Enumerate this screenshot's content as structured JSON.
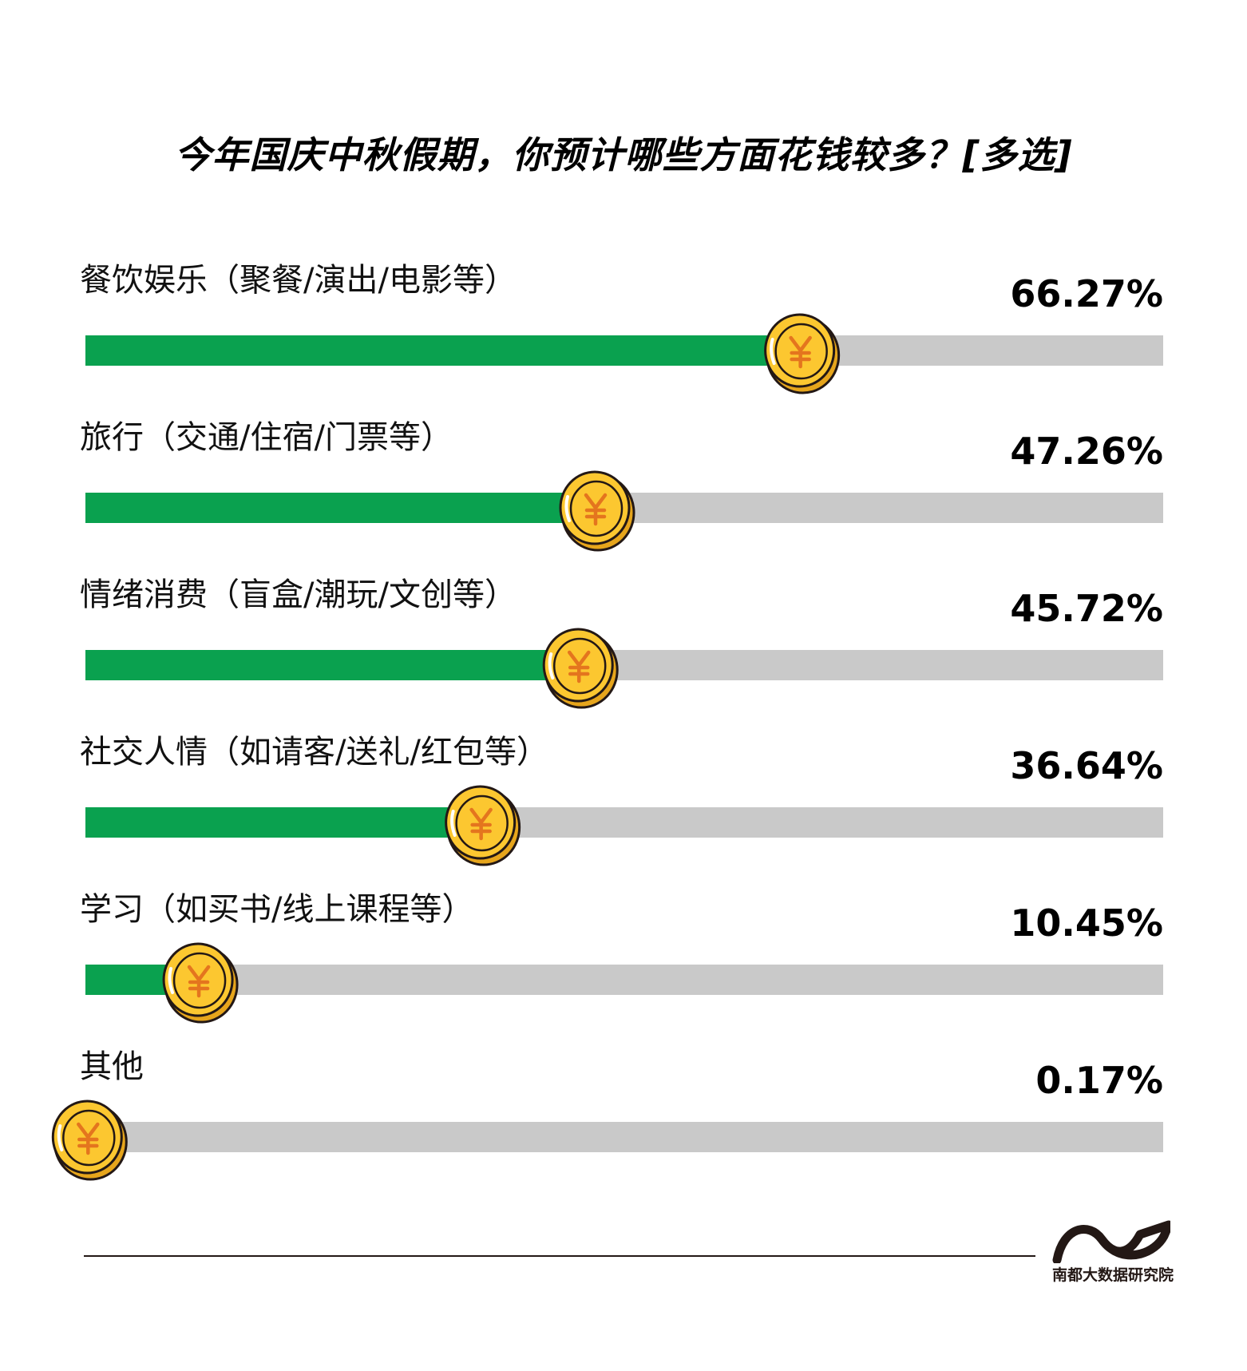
{
  "chart_data": {
    "type": "bar",
    "orientation": "horizontal",
    "title": "今年国庆中秋假期，你预计哪些方面花钱较多？[多选]",
    "categories": [
      "餐饮娱乐（聚餐/演出/电影等）",
      "旅行（交通/住宿/门票等）",
      "情绪消费（盲盒/潮玩/文创等）",
      "社交人情（如请客/送礼/红包等）",
      "学习（如买书/线上课程等）",
      "其他"
    ],
    "values": [
      66.27,
      47.26,
      45.72,
      36.64,
      10.45,
      0.17
    ],
    "value_labels": [
      "66.27%",
      "47.26%",
      "45.72%",
      "36.64%",
      "10.45%",
      "0.17%"
    ],
    "unit": "%",
    "xlim": [
      0,
      100
    ],
    "grid": false,
    "legend": "none",
    "marker_icon": "yuan-coin-icon",
    "colors": {
      "bar_fill": "#0aa14f",
      "bar_track": "#c9c9c9",
      "coin_fill": "#fcc730",
      "coin_outline": "#231815",
      "coin_symbol": "#e4751e"
    }
  },
  "footer": {
    "logo_text": "南都大数据研究院"
  }
}
